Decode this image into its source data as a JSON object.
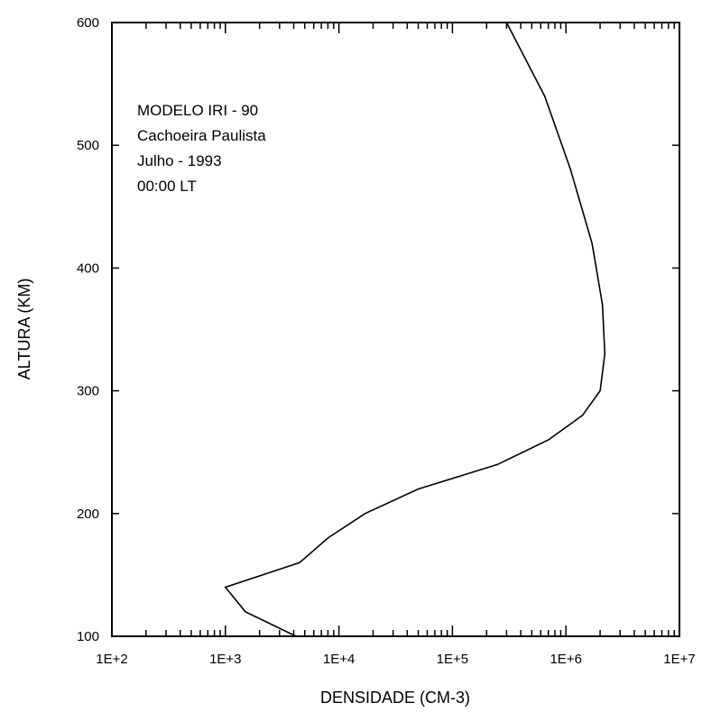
{
  "chart_data": {
    "type": "line",
    "title": "",
    "xlabel": "DENSIDADE (CM-3)",
    "ylabel": "ALTURA (KM)",
    "xscale": "log",
    "xlim": [
      100,
      10000000
    ],
    "ylim": [
      100,
      600
    ],
    "x_tick_labels": [
      "1E+2",
      "1E+3",
      "1E+4",
      "1E+5",
      "1E+6",
      "1E+7"
    ],
    "y_ticks": [
      100,
      200,
      300,
      400,
      500,
      600
    ],
    "y_tick_labels": [
      "100",
      "200",
      "300",
      "400",
      "500",
      "600"
    ],
    "annotations": [
      "MODELO IRI - 90",
      "Cachoeira Paulista",
      "Julho - 1993",
      "00:00 LT"
    ],
    "grid": false,
    "line_color": "#000000",
    "series": [
      {
        "x": [
          4200,
          1500,
          1000,
          4500,
          8000,
          17000,
          50000,
          250000,
          700000,
          1400000,
          2000000,
          2200000,
          2100000,
          1700000,
          1100000,
          650000,
          300000
        ],
        "y": [
          100,
          120,
          140,
          160,
          180,
          200,
          220,
          240,
          260,
          280,
          300,
          330,
          370,
          420,
          480,
          540,
          600
        ]
      }
    ]
  }
}
